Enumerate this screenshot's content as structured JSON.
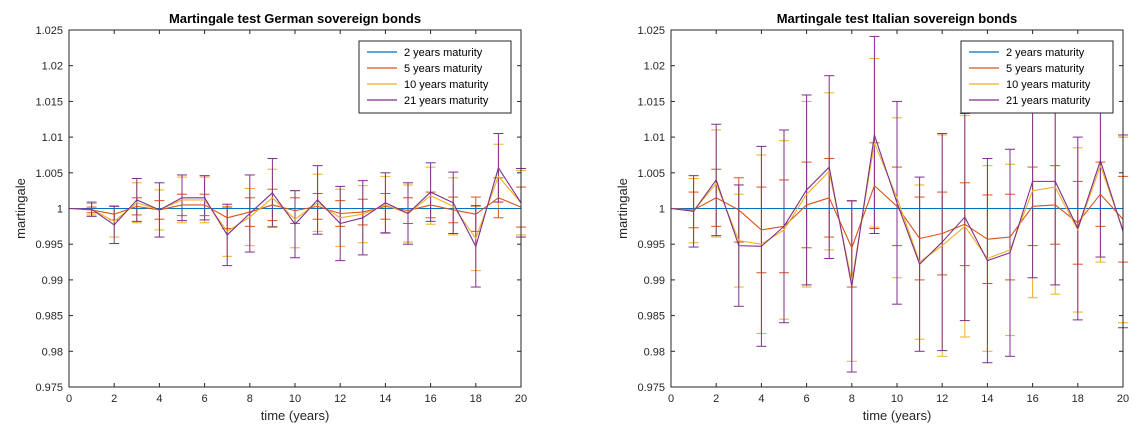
{
  "figure": {
    "background": "#ffffff"
  },
  "chart_data": [
    {
      "id": "german",
      "type": "line",
      "title": "Martingale test German sovereign bonds",
      "xlabel": "time (years)",
      "ylabel": "martingale",
      "xlim": [
        0,
        20
      ],
      "ylim": [
        0.975,
        1.025
      ],
      "xticks": [
        0,
        2,
        4,
        6,
        8,
        10,
        12,
        14,
        16,
        18,
        20
      ],
      "yticks": [
        0.975,
        0.98,
        0.985,
        0.99,
        0.995,
        1,
        1.005,
        1.01,
        1.015,
        1.02,
        1.025
      ],
      "ytick_labels": [
        "0.975",
        "0.98",
        "0.985",
        "0.99",
        "0.995",
        "1",
        "1.005",
        "1.01",
        "1.015",
        "1.02",
        "1.025"
      ],
      "grid": false,
      "legend_position": "top-right",
      "x": [
        0,
        1,
        2,
        3,
        4,
        5,
        6,
        7,
        8,
        9,
        10,
        11,
        12,
        13,
        14,
        15,
        16,
        17,
        18,
        19,
        20
      ],
      "series": [
        {
          "name": "2 years maturity",
          "color": "#0072BD",
          "values": [
            1,
            1,
            1,
            1,
            1,
            1,
            1,
            1,
            1,
            1,
            1,
            1,
            1,
            1,
            1,
            1,
            1,
            1,
            1,
            1,
            1
          ],
          "err": [
            0,
            0,
            0,
            0,
            0,
            0,
            0,
            0,
            0,
            0,
            0,
            0,
            0,
            0,
            0,
            0,
            0,
            0,
            0,
            0,
            0
          ]
        },
        {
          "name": "5 years maturity",
          "color": "#D95319",
          "values": [
            1,
            0.9998,
            0.9992,
            1.0003,
            0.9998,
            1.0005,
            1.0005,
            0.9987,
            0.9995,
            1.0005,
            0.9997,
            1.0003,
            0.9993,
            0.9995,
            1.0003,
            0.9997,
            1.0005,
            0.9998,
            0.9992,
            1.0015,
            1.0002
          ],
          "err": [
            0,
            0.0004,
            0.0008,
            0.0012,
            0.0013,
            0.0015,
            0.0015,
            0.0015,
            0.002,
            0.0022,
            0.0018,
            0.0018,
            0.0018,
            0.0018,
            0.0018,
            0.0018,
            0.0018,
            0.0018,
            0.0024,
            0.0028,
            0.0028
          ]
        },
        {
          "name": "10 years maturity",
          "color": "#EDB120",
          "values": [
            1,
            0.9999,
            0.9982,
            1.0008,
            0.9998,
            1.0012,
            1.0012,
            0.9968,
            0.9988,
            1.0015,
            0.9985,
            1.0008,
            0.9987,
            0.9992,
            1.0005,
            0.9993,
            1.0018,
            1.0003,
            0.9958,
            1.0045,
            1.0008
          ],
          "err": [
            0,
            0.0008,
            0.0022,
            0.0028,
            0.0028,
            0.0032,
            0.0032,
            0.0035,
            0.004,
            0.004,
            0.004,
            0.004,
            0.004,
            0.004,
            0.004,
            0.004,
            0.004,
            0.004,
            0.0045,
            0.0045,
            0.0045
          ]
        },
        {
          "name": "21 years maturity",
          "color": "#7E2F8E",
          "values": [
            1,
            0.9999,
            0.9977,
            1.0012,
            0.9998,
            1.0015,
            1.0015,
            0.9963,
            0.9993,
            1.0022,
            0.9978,
            1.0012,
            0.9979,
            0.9987,
            1.0008,
            0.9993,
            1.0023,
            1.0008,
            0.9947,
            1.0057,
            1.0008
          ],
          "err": [
            0,
            0.001,
            0.0026,
            0.003,
            0.0038,
            0.0032,
            0.0031,
            0.0043,
            0.0054,
            0.0048,
            0.0047,
            0.0048,
            0.0052,
            0.0052,
            0.0042,
            0.0043,
            0.0041,
            0.0043,
            0.0057,
            0.0048,
            0.0048
          ]
        }
      ]
    },
    {
      "id": "italian",
      "type": "line",
      "title": "Martingale test Italian sovereign bonds",
      "xlabel": "time (years)",
      "ylabel": "martingale",
      "xlim": [
        0,
        20
      ],
      "ylim": [
        0.975,
        1.025
      ],
      "xticks": [
        0,
        2,
        4,
        6,
        8,
        10,
        12,
        14,
        16,
        18,
        20
      ],
      "yticks": [
        0.975,
        0.98,
        0.985,
        0.99,
        0.995,
        1,
        1.005,
        1.01,
        1.015,
        1.02,
        1.025
      ],
      "ytick_labels": [
        "0.975",
        "0.98",
        "0.985",
        "0.99",
        "0.995",
        "1",
        "1.005",
        "1.01",
        "1.015",
        "1.02",
        "1.025"
      ],
      "grid": false,
      "legend_position": "top-right",
      "x": [
        0,
        1,
        2,
        3,
        4,
        5,
        6,
        7,
        8,
        9,
        10,
        11,
        12,
        13,
        14,
        15,
        16,
        17,
        18,
        19,
        20
      ],
      "series": [
        {
          "name": "2 years maturity",
          "color": "#0072BD",
          "values": [
            1,
            1,
            1,
            1,
            1,
            1,
            1,
            1,
            1,
            1,
            1,
            1,
            1,
            1,
            1,
            1,
            1,
            1,
            1,
            1,
            1
          ],
          "err": [
            0,
            0,
            0,
            0,
            0,
            0,
            0,
            0,
            0,
            0,
            0,
            0,
            0,
            0,
            0,
            0,
            0,
            0,
            0,
            0,
            0
          ]
        },
        {
          "name": "5 years maturity",
          "color": "#D95319",
          "values": [
            1,
            0.9998,
            1.0015,
            0.9998,
            0.997,
            0.9975,
            1.0005,
            1.0015,
            0.9945,
            1.0032,
            1.0003,
            0.9958,
            0.9965,
            0.9978,
            0.9957,
            0.996,
            1.0003,
            1.0005,
            0.998,
            1.002,
            0.9985
          ],
          "err": [
            0,
            0.0025,
            0.004,
            0.0045,
            0.006,
            0.0065,
            0.006,
            0.0055,
            0.0055,
            0.006,
            0.0055,
            0.0058,
            0.0058,
            0.0058,
            0.0062,
            0.006,
            0.0055,
            0.0055,
            0.0058,
            0.0045,
            0.006
          ]
        },
        {
          "name": "10 years maturity",
          "color": "#EDB120",
          "values": [
            1,
            0.9997,
            1.0035,
            0.9955,
            0.995,
            0.997,
            1.002,
            1.0052,
            0.9898,
            1.0092,
            1.0015,
            0.9925,
            0.9948,
            0.9975,
            0.993,
            0.9942,
            1.0025,
            1.003,
            0.997,
            1.006,
            0.997
          ],
          "err": [
            0,
            0.0045,
            0.0075,
            0.0065,
            0.0125,
            0.0125,
            0.013,
            0.011,
            0.0112,
            0.0118,
            0.0112,
            0.0108,
            0.0155,
            0.0155,
            0.013,
            0.012,
            0.015,
            0.015,
            0.0115,
            0.0135,
            0.013
          ]
        },
        {
          "name": "21 years maturity",
          "color": "#7E2F8E",
          "values": [
            1,
            0.9996,
            1.004,
            0.9948,
            0.9947,
            0.9975,
            1.0026,
            1.0058,
            0.9891,
            1.0103,
            1.0008,
            0.9922,
            0.9953,
            0.9988,
            0.9927,
            0.9938,
            1.0038,
            1.0038,
            0.9972,
            1.0067,
            0.9968
          ],
          "err": [
            0,
            0.005,
            0.0078,
            0.0085,
            0.014,
            0.0135,
            0.0133,
            0.0128,
            0.012,
            0.0138,
            0.0142,
            0.0122,
            0.0152,
            0.0145,
            0.0143,
            0.0145,
            0.0135,
            0.0145,
            0.0128,
            0.0135,
            0.0135
          ]
        }
      ]
    }
  ]
}
